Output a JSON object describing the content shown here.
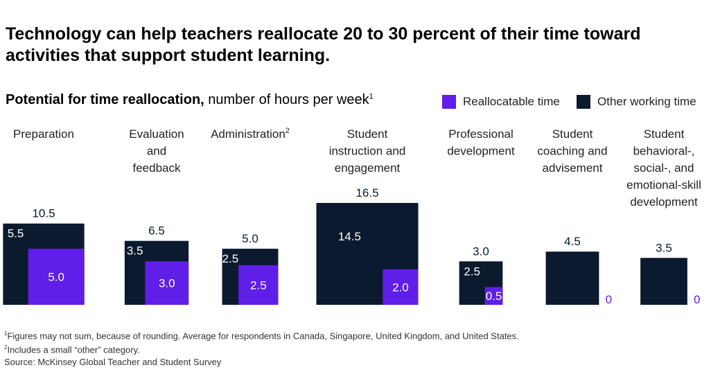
{
  "title": "Technology can help teachers reallocate 20 to 30 percent of their time toward activities that support student learning.",
  "subtitle": {
    "bold": "Potential for time reallocation,",
    "rest": " number of hours per week",
    "sup": "1"
  },
  "legend": [
    {
      "label": "Reallocatable time",
      "color": "#5f1fe8"
    },
    {
      "label": "Other working time",
      "color": "#0b1a2e"
    }
  ],
  "colors": {
    "reallocatable": "#5f1fe8",
    "other": "#0b1a2e",
    "text": "#051c2c"
  },
  "chart_data": {
    "type": "nested-square",
    "title": "Potential for time reallocation, number of hours per week",
    "units": "hours per week",
    "categories": [
      {
        "label_lines": [
          "Preparation"
        ],
        "sup": "",
        "total": "10.5",
        "other": "5.5",
        "reallocatable": "5.0"
      },
      {
        "label_lines": [
          "Evaluation",
          "and",
          "feedback"
        ],
        "sup": "",
        "total": "6.5",
        "other": "3.5",
        "reallocatable": "3.0"
      },
      {
        "label_lines": [
          "Administration"
        ],
        "sup": "2",
        "total": "5.0",
        "other": "2.5",
        "reallocatable": "2.5"
      },
      {
        "label_lines": [
          "Student",
          "instruction and",
          "engagement"
        ],
        "sup": "",
        "total": "16.5",
        "other": "14.5",
        "reallocatable": "2.0"
      },
      {
        "label_lines": [
          "Professional",
          "development"
        ],
        "sup": "",
        "total": "3.0",
        "other": "2.5",
        "reallocatable": "0.5"
      },
      {
        "label_lines": [
          "Student",
          "coaching and",
          "advisement"
        ],
        "sup": "",
        "total": "4.5",
        "other": "",
        "reallocatable": "0"
      },
      {
        "label_lines": [
          "Student",
          "behavioral-,",
          "social-, and",
          "emotional-skill",
          "development"
        ],
        "sup": "",
        "total": "3.5",
        "other": "",
        "reallocatable": "0"
      }
    ]
  },
  "footnotes": [
    {
      "sup": "1",
      "text": "Figures may not sum, because of rounding. Average for respondents in Canada, Singapore, United Kingdom, and United States."
    },
    {
      "sup": "2",
      "text": "Includes a small “other” category."
    },
    {
      "sup": "",
      "text": "Source: McKinsey Global Teacher and Student Survey"
    }
  ]
}
